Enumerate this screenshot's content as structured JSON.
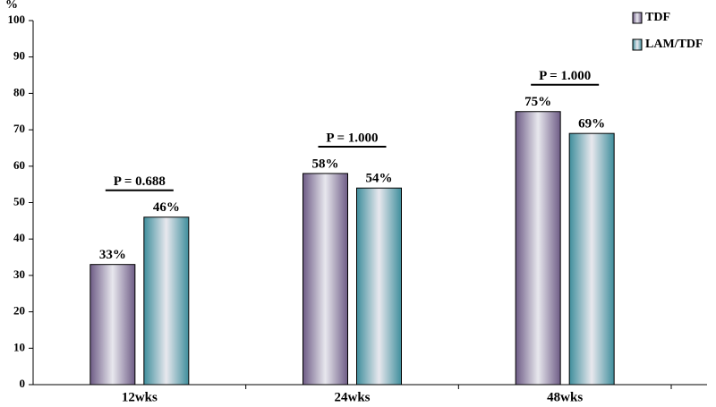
{
  "chart_data": {
    "type": "bar",
    "y_label": "%",
    "categories": [
      "12wks",
      "24wks",
      "48wks"
    ],
    "series": [
      {
        "name": "TDF",
        "color": "#6e5c86",
        "values": [
          33,
          58,
          75
        ],
        "value_labels": [
          "33%",
          "58%",
          "75%"
        ]
      },
      {
        "name": "LAM/TDF",
        "color": "#3f8e9c",
        "values": [
          46,
          54,
          69
        ],
        "value_labels": [
          "46%",
          "54%",
          "69%"
        ]
      }
    ],
    "annotations": [
      "P = 0.688",
      "P = 1.000",
      "P = 1.000"
    ],
    "ylim": [
      0,
      100
    ],
    "yticks": [
      0,
      10,
      20,
      30,
      40,
      50,
      60,
      70,
      80,
      90,
      100
    ],
    "legend": "top-right",
    "grid": false
  }
}
